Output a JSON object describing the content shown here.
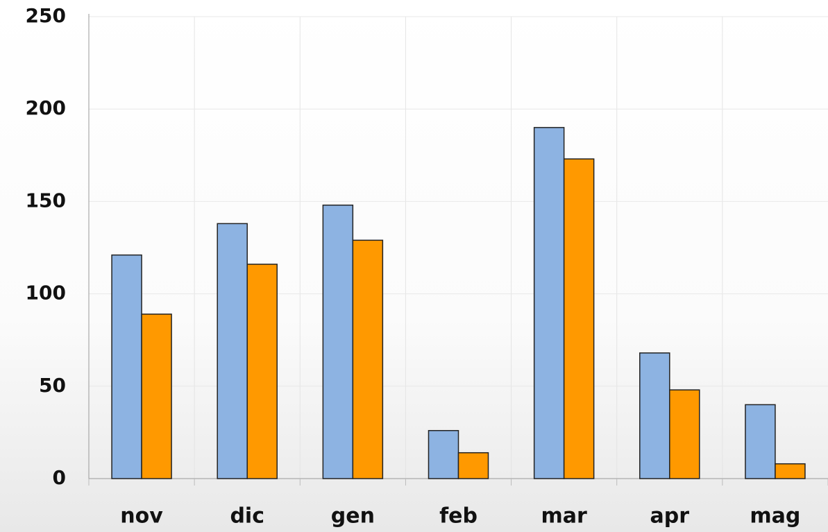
{
  "chart_data": {
    "type": "bar",
    "categories": [
      "nov",
      "dic",
      "gen",
      "feb",
      "mar",
      "apr",
      "mag"
    ],
    "series": [
      {
        "color": "#8db3e2",
        "values": [
          121,
          138,
          148,
          26,
          190,
          68,
          40
        ]
      },
      {
        "color": "#ff9900",
        "values": [
          89,
          116,
          129,
          14,
          173,
          48,
          8
        ]
      }
    ],
    "ylim": [
      0,
      250
    ],
    "yticks": [
      0,
      50,
      100,
      150,
      200,
      250
    ],
    "grid": true
  }
}
